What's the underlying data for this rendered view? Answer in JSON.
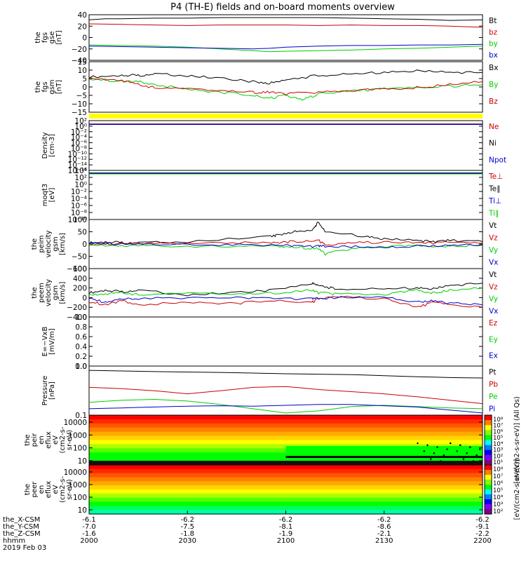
{
  "title": "P4 (TH-E) fields and on-board moments overview",
  "footer": {
    "rows": [
      {
        "label": "the_X-CSM",
        "values": [
          "-6.1",
          "-6.2",
          "-6.2",
          "-6.2",
          "-6.2"
        ]
      },
      {
        "label": "the_Y-CSM",
        "values": [
          "-7.0",
          "-7.5",
          "-8.1",
          "-8.6",
          "-9.1"
        ]
      },
      {
        "label": "the_Z-CSM",
        "values": [
          "-1.6",
          "-1.8",
          "-1.9",
          "-2.1",
          "-2.2"
        ]
      },
      {
        "label": "hhmm",
        "values": [
          "2000",
          "2030",
          "2100",
          "2130",
          "2200"
        ]
      }
    ],
    "date": "2019 Feb 03"
  },
  "chart_data": [
    {
      "id": "fgs_gse",
      "type": "line",
      "ylabel": [
        "the",
        "fgs",
        "gse",
        "[nT]"
      ],
      "ylim": [
        -40,
        40
      ],
      "yticks": [
        "40",
        "20",
        "0",
        "−20",
        "−40"
      ],
      "legend": [
        {
          "name": "Bt",
          "color": "#000000"
        },
        {
          "name": "bz",
          "color": "#cc0000"
        },
        {
          "name": "by",
          "color": "#00cc00"
        },
        {
          "name": "bx",
          "color": "#0000cc"
        }
      ],
      "series": [
        {
          "name": "Bt",
          "x": [
            0,
            5,
            10,
            20,
            30,
            40,
            50,
            60,
            70,
            80,
            90,
            100,
            110,
            120
          ],
          "y": [
            31,
            33,
            33,
            34,
            34,
            35,
            35,
            35,
            35,
            34,
            33,
            32,
            30,
            31
          ]
        },
        {
          "name": "bz",
          "x": [
            0,
            10,
            20,
            30,
            40,
            50,
            60,
            70,
            80,
            90,
            100,
            110,
            120
          ],
          "y": [
            24,
            23,
            22,
            21,
            22,
            22,
            22,
            21,
            22,
            21,
            21,
            20,
            18
          ]
        },
        {
          "name": "by",
          "x": [
            0,
            10,
            20,
            30,
            40,
            50,
            55,
            60,
            70,
            80,
            90,
            100,
            110,
            120
          ],
          "y": [
            -13,
            -14,
            -15,
            -17,
            -20,
            -23,
            -25,
            -24,
            -23,
            -22,
            -20,
            -19,
            -17,
            -15
          ]
        },
        {
          "name": "bx",
          "x": [
            0,
            10,
            20,
            30,
            40,
            50,
            55,
            60,
            70,
            80,
            90,
            100,
            110,
            120
          ],
          "y": [
            -15,
            -16,
            -17,
            -18,
            -19,
            -20,
            -19,
            -17,
            -15,
            -14,
            -14,
            -13,
            -13,
            -12
          ]
        }
      ]
    },
    {
      "id": "fgs_gsm",
      "type": "line",
      "ylabel": [
        "the",
        "fgs",
        "gsm",
        "[nT]"
      ],
      "ylim": [
        -18,
        15
      ],
      "yticks": [
        "15",
        "10",
        "5",
        "0",
        "−5",
        "−10",
        "−15"
      ],
      "legend": [
        {
          "name": "Bx",
          "color": "#000000"
        },
        {
          "name": "By",
          "color": "#00cc00"
        },
        {
          "name": "Bz",
          "color": "#cc0000"
        }
      ],
      "series": [
        {
          "name": "Bx",
          "x": [
            0,
            10,
            15,
            20,
            30,
            40,
            50,
            55,
            60,
            70,
            80,
            90,
            100,
            110,
            120
          ],
          "y": [
            5,
            6,
            6,
            7,
            6,
            4,
            2,
            1,
            3,
            6,
            7,
            8,
            9,
            8,
            8
          ]
        },
        {
          "name": "By",
          "x": [
            0,
            10,
            15,
            20,
            30,
            40,
            50,
            55,
            60,
            65,
            70,
            80,
            90,
            100,
            110,
            120
          ],
          "y": [
            4,
            2,
            2,
            0,
            -3,
            -5,
            -7,
            -9,
            -7,
            -10,
            -6,
            -4,
            -3,
            -2,
            -1,
            0
          ]
        },
        {
          "name": "Bz",
          "x": [
            0,
            10,
            15,
            20,
            30,
            40,
            50,
            55,
            60,
            70,
            80,
            90,
            100,
            110,
            120
          ],
          "y": [
            4,
            3,
            0,
            -2,
            -3,
            -4,
            -5,
            -5,
            -6,
            -5,
            -4,
            -3,
            -2,
            0,
            2
          ]
        }
      ]
    },
    {
      "id": "density",
      "type": "line",
      "log": true,
      "ylabel": [
        "Density",
        "[cm-3]"
      ],
      "ylim": [
        -16,
        2
      ],
      "yticks": [
        "10²",
        "10⁰",
        "10⁻²",
        "10⁻⁴",
        "10⁻⁶",
        "10⁻⁸",
        "10⁻¹⁰",
        "10⁻¹²",
        "10⁻¹⁴",
        "10⁻¹⁶"
      ],
      "legend": [
        {
          "name": "Ne",
          "color": "#cc0000"
        },
        {
          "name": "Ni",
          "color": "#000000"
        },
        {
          "name": "Npot",
          "color": "#0000cc"
        }
      ],
      "series": [
        {
          "name": "Ne",
          "x": [
            0,
            120
          ],
          "y": [
            0.8,
            0.8
          ]
        },
        {
          "name": "Ni",
          "x": [
            0,
            120
          ],
          "y": [
            0.7,
            0.7
          ]
        },
        {
          "name": "Npot",
          "x": [
            0,
            120
          ],
          "y": [
            0.6,
            0.6
          ]
        }
      ]
    },
    {
      "id": "temperature",
      "type": "line",
      "log": true,
      "ylabel": [
        "moqt3",
        "[eV]"
      ],
      "ylim": [
        -10,
        4
      ],
      "yticks": [
        "10⁴",
        "10²",
        "10⁰",
        "10⁻²",
        "10⁻⁴",
        "10⁻⁶",
        "10⁻⁸",
        "10⁻¹⁰"
      ],
      "legend": [
        {
          "name": "Te⊥",
          "color": "#cc0000"
        },
        {
          "name": "Te∥",
          "color": "#000000"
        },
        {
          "name": "Ti⊥",
          "color": "#0000cc"
        },
        {
          "name": "Ti∥",
          "color": "#00cc00"
        }
      ],
      "series": [
        {
          "name": "Te⊥",
          "x": [
            0,
            120
          ],
          "y": [
            3.2,
            3.2
          ]
        },
        {
          "name": "Te∥",
          "x": [
            0,
            120
          ],
          "y": [
            3.1,
            3.1
          ]
        },
        {
          "name": "Ti⊥",
          "x": [
            0,
            120
          ],
          "y": [
            3.3,
            3.3
          ]
        },
        {
          "name": "Ti∥",
          "x": [
            0,
            120
          ],
          "y": [
            3.0,
            3.0
          ]
        }
      ]
    },
    {
      "id": "peim_velocity",
      "type": "line",
      "ylabel": [
        "the",
        "peim",
        "velocity",
        "gsm",
        "[km/s]"
      ],
      "ylim": [
        -100,
        100
      ],
      "yticks": [
        "100",
        "50",
        "0",
        "−50",
        "−100"
      ],
      "legend": [
        {
          "name": "Vt",
          "color": "#000000"
        },
        {
          "name": "Vz",
          "color": "#cc0000"
        },
        {
          "name": "Vy",
          "color": "#00cc00"
        },
        {
          "name": "Vx",
          "color": "#0000cc"
        }
      ],
      "series": [
        {
          "name": "Vt",
          "x": [
            0,
            5,
            10,
            15,
            30,
            55,
            57,
            62,
            68,
            70,
            72,
            85,
            90,
            100,
            105,
            110,
            120
          ],
          "y": [
            5,
            8,
            6,
            5,
            10,
            30,
            35,
            50,
            55,
            90,
            50,
            30,
            20,
            15,
            10,
            15,
            10
          ]
        },
        {
          "name": "Vz",
          "x": [
            0,
            10,
            20,
            40,
            55,
            60,
            65,
            70,
            72,
            80,
            90,
            100,
            110,
            120
          ],
          "y": [
            0,
            2,
            3,
            5,
            5,
            8,
            10,
            15,
            -5,
            5,
            8,
            5,
            5,
            3
          ]
        },
        {
          "name": "Vy",
          "x": [
            0,
            10,
            20,
            40,
            55,
            60,
            65,
            70,
            72,
            80,
            90,
            100,
            110,
            120
          ],
          "y": [
            -5,
            -6,
            -8,
            -10,
            -10,
            -12,
            -15,
            -20,
            -40,
            -20,
            -10,
            -8,
            -8,
            -5
          ]
        },
        {
          "name": "Vx",
          "x": [
            0,
            10,
            20,
            40,
            55,
            60,
            65,
            70,
            72,
            80,
            90,
            100,
            110,
            120
          ],
          "y": [
            2,
            0,
            -2,
            -3,
            -5,
            -5,
            -8,
            -10,
            -8,
            -10,
            -15,
            -10,
            -5,
            -2
          ]
        }
      ]
    },
    {
      "id": "peem_velocity",
      "type": "line",
      "ylabel": [
        "the",
        "peem",
        "velocity",
        "gsm",
        "[km/s]"
      ],
      "ylim": [
        -400,
        600
      ],
      "yticks": [
        "600",
        "400",
        "200",
        "0",
        "−200",
        "−400"
      ],
      "legend": [
        {
          "name": "Vt",
          "color": "#000000"
        },
        {
          "name": "Vz",
          "color": "#cc0000"
        },
        {
          "name": "Vy",
          "color": "#00cc00"
        },
        {
          "name": "Vx",
          "color": "#0000cc"
        }
      ],
      "series": [
        {
          "name": "Vt",
          "x": [
            0,
            5,
            10,
            15,
            30,
            45,
            55,
            68,
            70,
            75,
            90,
            100,
            105,
            110,
            120
          ],
          "y": [
            100,
            150,
            120,
            150,
            60,
            100,
            150,
            300,
            250,
            180,
            180,
            200,
            180,
            250,
            300
          ]
        },
        {
          "name": "Vz",
          "x": [
            0,
            5,
            10,
            15,
            30,
            45,
            55,
            68,
            70,
            75,
            90,
            100,
            105,
            110,
            120
          ],
          "y": [
            -80,
            -150,
            -60,
            -150,
            -100,
            -120,
            -60,
            -100,
            -20,
            20,
            -20,
            -200,
            -100,
            -150,
            -200
          ]
        },
        {
          "name": "Vy",
          "x": [
            0,
            5,
            10,
            15,
            30,
            45,
            55,
            68,
            70,
            75,
            90,
            100,
            105,
            110,
            120
          ],
          "y": [
            50,
            80,
            100,
            60,
            80,
            70,
            90,
            150,
            100,
            80,
            60,
            150,
            100,
            150,
            200
          ]
        },
        {
          "name": "Vx",
          "x": [
            0,
            5,
            10,
            15,
            30,
            45,
            55,
            68,
            70,
            75,
            90,
            100,
            105,
            110,
            120
          ],
          "y": [
            -20,
            -100,
            -30,
            -20,
            -10,
            0,
            -10,
            -30,
            -10,
            0,
            10,
            -100,
            -60,
            -120,
            -150
          ]
        }
      ]
    },
    {
      "id": "efield",
      "type": "line",
      "ylabel": [
        "E=−VxB",
        "[mV/m]"
      ],
      "ylim": [
        0,
        1
      ],
      "yticks": [
        "1.0",
        "0.8",
        "0.6",
        "0.4",
        "0.2",
        "0.0"
      ],
      "legend": [
        {
          "name": "Ez",
          "color": "#cc0000"
        },
        {
          "name": "Ey",
          "color": "#00cc00"
        },
        {
          "name": "Ex",
          "color": "#0000cc"
        }
      ],
      "series": []
    },
    {
      "id": "pressure",
      "type": "line",
      "log": true,
      "ylabel": [
        "Pressure",
        "[nPa]"
      ],
      "ylim": [
        -1.05,
        0.1
      ],
      "yticks": [
        "1.0",
        "0.1"
      ],
      "legend": [
        {
          "name": "Pt",
          "color": "#000000"
        },
        {
          "name": "Pb",
          "color": "#cc0000"
        },
        {
          "name": "Pe",
          "color": "#00cc00"
        },
        {
          "name": "Pi",
          "color": "#0000cc"
        }
      ],
      "series": [
        {
          "name": "Pt",
          "x": [
            0,
            20,
            40,
            60,
            80,
            100,
            110,
            120
          ],
          "y": [
            0.0,
            -0.03,
            -0.05,
            -0.08,
            -0.1,
            -0.15,
            -0.17,
            -0.18
          ]
        },
        {
          "name": "Pb",
          "x": [
            0,
            10,
            20,
            30,
            40,
            50,
            60,
            70,
            80,
            90,
            100,
            110,
            120
          ],
          "y": [
            -0.4,
            -0.43,
            -0.48,
            -0.55,
            -0.48,
            -0.4,
            -0.38,
            -0.45,
            -0.5,
            -0.55,
            -0.62,
            -0.7,
            -0.78
          ]
        },
        {
          "name": "Pe",
          "x": [
            0,
            10,
            20,
            30,
            40,
            50,
            60,
            70,
            80,
            90,
            100,
            110,
            120
          ],
          "y": [
            -0.75,
            -0.7,
            -0.68,
            -0.72,
            -0.8,
            -0.9,
            -1.0,
            -0.95,
            -0.85,
            -0.82,
            -0.85,
            -0.88,
            -0.9
          ]
        },
        {
          "name": "Pi",
          "x": [
            0,
            10,
            20,
            30,
            40,
            50,
            60,
            70,
            80,
            90,
            100,
            110,
            120
          ],
          "y": [
            -0.9,
            -0.88,
            -0.86,
            -0.84,
            -0.83,
            -0.84,
            -0.82,
            -0.8,
            -0.8,
            -0.83,
            -0.86,
            -0.93,
            -1.0
          ]
        }
      ]
    },
    {
      "id": "peir_eflux",
      "type": "heatmap",
      "ylabel": [
        "the",
        "peir",
        "en",
        "eflux",
        "eV",
        "(cm2-s-",
        "sr-eV)"
      ],
      "yrange_log": [
        0.7,
        4.1
      ],
      "yticks": [
        "10000",
        "1000",
        "100",
        "10"
      ],
      "colorbar": {
        "label": "[eV/(cm2-s-sr-eV)] (All Qs)",
        "ticks": [
          "10⁸",
          "10⁷",
          "10⁶",
          "10⁵",
          "10⁴",
          "10³",
          "10²",
          "10¹"
        ]
      }
    },
    {
      "id": "peer_eflux",
      "type": "heatmap",
      "ylabel": [
        "the",
        "peer",
        "en",
        "eflux",
        "eV",
        "(cm2-s-",
        "sr-eV)"
      ],
      "yrange_log": [
        0.7,
        4.1
      ],
      "yticks": [
        "10000",
        "1000",
        "100",
        "10"
      ],
      "colorbar": {
        "label": "[eV/(cm2-s-sr-eV)]",
        "ticks": [
          "10⁸",
          "10⁷",
          "10⁶",
          "10⁵",
          "10⁴",
          "10³",
          "10²"
        ]
      }
    }
  ]
}
